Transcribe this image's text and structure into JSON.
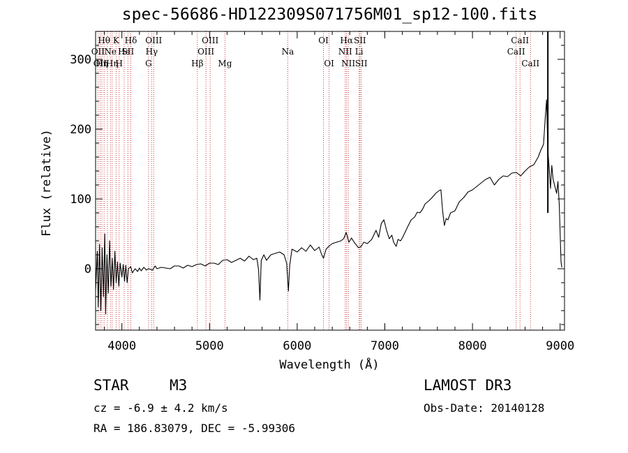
{
  "header": {
    "title": "spec-56686-HD122309S071756M01_sp12-100.fits"
  },
  "info": {
    "class_label": "STAR",
    "subclass_label": "M3",
    "survey": "LAMOST DR3",
    "cz": "cz = -6.9 ± 4.2 km/s",
    "obs_date": "Obs-Date: 20140128",
    "coords": "RA = 186.83079, DEC =  -5.99306"
  },
  "chart_data": {
    "type": "line",
    "title": "spec-56686-HD122309S071756M01_sp12-100.fits",
    "xlabel": "Wavelength (Å)",
    "ylabel": "Flux (relative)",
    "xlim": [
      3700,
      9050
    ],
    "ylim": [
      -88,
      340
    ],
    "xticks": [
      4000,
      5000,
      6000,
      7000,
      8000,
      9000
    ],
    "yticks": [
      0,
      100,
      200,
      300
    ],
    "line_color": "#000000",
    "marker_color": "#cc3333",
    "series": [
      {
        "name": "flux",
        "points": [
          [
            3700,
            -30
          ],
          [
            3720,
            25
          ],
          [
            3730,
            -55
          ],
          [
            3745,
            35
          ],
          [
            3760,
            -60
          ],
          [
            3775,
            30
          ],
          [
            3790,
            -40
          ],
          [
            3805,
            50
          ],
          [
            3815,
            -65
          ],
          [
            3830,
            20
          ],
          [
            3845,
            -35
          ],
          [
            3860,
            40
          ],
          [
            3875,
            -25
          ],
          [
            3890,
            15
          ],
          [
            3905,
            -30
          ],
          [
            3920,
            25
          ],
          [
            3935,
            -20
          ],
          [
            3950,
            10
          ],
          [
            3965,
            -25
          ],
          [
            3980,
            8
          ],
          [
            4000,
            -12
          ],
          [
            4015,
            6
          ],
          [
            4030,
            -18
          ],
          [
            4045,
            5
          ],
          [
            4060,
            -20
          ],
          [
            4075,
            0
          ],
          [
            4100,
            3
          ],
          [
            4120,
            -6
          ],
          [
            4150,
            0
          ],
          [
            4180,
            -4
          ],
          [
            4200,
            1
          ],
          [
            4220,
            -3
          ],
          [
            4250,
            2
          ],
          [
            4280,
            -2
          ],
          [
            4300,
            0
          ],
          [
            4330,
            -1
          ],
          [
            4350,
            -2
          ],
          [
            4380,
            4
          ],
          [
            4400,
            0
          ],
          [
            4450,
            2
          ],
          [
            4500,
            1
          ],
          [
            4550,
            0
          ],
          [
            4600,
            4
          ],
          [
            4650,
            4
          ],
          [
            4700,
            1
          ],
          [
            4750,
            5
          ],
          [
            4800,
            3
          ],
          [
            4850,
            6
          ],
          [
            4900,
            7
          ],
          [
            4950,
            4
          ],
          [
            5000,
            8
          ],
          [
            5050,
            8
          ],
          [
            5100,
            6
          ],
          [
            5150,
            12
          ],
          [
            5200,
            13
          ],
          [
            5250,
            9
          ],
          [
            5300,
            12
          ],
          [
            5350,
            15
          ],
          [
            5400,
            11
          ],
          [
            5450,
            18
          ],
          [
            5500,
            13
          ],
          [
            5540,
            15
          ],
          [
            5560,
            -2
          ],
          [
            5575,
            -45
          ],
          [
            5590,
            12
          ],
          [
            5620,
            20
          ],
          [
            5650,
            12
          ],
          [
            5700,
            20
          ],
          [
            5750,
            22
          ],
          [
            5800,
            24
          ],
          [
            5850,
            20
          ],
          [
            5880,
            8
          ],
          [
            5900,
            -32
          ],
          [
            5915,
            5
          ],
          [
            5940,
            28
          ],
          [
            6000,
            24
          ],
          [
            6050,
            30
          ],
          [
            6100,
            25
          ],
          [
            6150,
            34
          ],
          [
            6200,
            26
          ],
          [
            6250,
            31
          ],
          [
            6280,
            20
          ],
          [
            6300,
            15
          ],
          [
            6330,
            28
          ],
          [
            6360,
            32
          ],
          [
            6400,
            36
          ],
          [
            6450,
            38
          ],
          [
            6500,
            40
          ],
          [
            6530,
            43
          ],
          [
            6560,
            52
          ],
          [
            6590,
            38
          ],
          [
            6620,
            44
          ],
          [
            6650,
            38
          ],
          [
            6700,
            30
          ],
          [
            6730,
            32
          ],
          [
            6760,
            38
          ],
          [
            6800,
            36
          ],
          [
            6850,
            42
          ],
          [
            6900,
            55
          ],
          [
            6930,
            45
          ],
          [
            6960,
            65
          ],
          [
            6990,
            70
          ],
          [
            7020,
            55
          ],
          [
            7050,
            43
          ],
          [
            7080,
            48
          ],
          [
            7100,
            38
          ],
          [
            7130,
            32
          ],
          [
            7150,
            42
          ],
          [
            7180,
            40
          ],
          [
            7200,
            44
          ],
          [
            7230,
            52
          ],
          [
            7260,
            60
          ],
          [
            7300,
            70
          ],
          [
            7340,
            74
          ],
          [
            7370,
            81
          ],
          [
            7400,
            80
          ],
          [
            7430,
            85
          ],
          [
            7460,
            93
          ],
          [
            7500,
            97
          ],
          [
            7540,
            102
          ],
          [
            7580,
            108
          ],
          [
            7620,
            112
          ],
          [
            7640,
            113
          ],
          [
            7660,
            82
          ],
          [
            7680,
            62
          ],
          [
            7700,
            72
          ],
          [
            7720,
            70
          ],
          [
            7750,
            80
          ],
          [
            7800,
            83
          ],
          [
            7850,
            96
          ],
          [
            7900,
            102
          ],
          [
            7950,
            110
          ],
          [
            8000,
            113
          ],
          [
            8050,
            118
          ],
          [
            8100,
            123
          ],
          [
            8150,
            128
          ],
          [
            8200,
            131
          ],
          [
            8250,
            120
          ],
          [
            8300,
            128
          ],
          [
            8350,
            133
          ],
          [
            8400,
            132
          ],
          [
            8450,
            137
          ],
          [
            8500,
            138
          ],
          [
            8550,
            133
          ],
          [
            8600,
            140
          ],
          [
            8650,
            146
          ],
          [
            8700,
            149
          ],
          [
            8750,
            160
          ],
          [
            8780,
            170
          ],
          [
            8810,
            178
          ],
          [
            8830,
            216
          ],
          [
            8845,
            242
          ],
          [
            8860,
            170
          ],
          [
            8875,
            145
          ],
          [
            8890,
            115
          ],
          [
            8905,
            148
          ],
          [
            8920,
            128
          ],
          [
            8940,
            118
          ],
          [
            8960,
            108
          ],
          [
            8975,
            125
          ],
          [
            8990,
            92
          ],
          [
            9010,
            10
          ],
          [
            9020,
            2
          ]
        ]
      }
    ],
    "spike": {
      "x": 8860,
      "y_low": 80,
      "y_high": 340
    },
    "lines": [
      {
        "x": 3727,
        "label": "OII",
        "row": 2
      },
      {
        "x": 3751,
        "label": "OII",
        "row": 3
      },
      {
        "x": 3771,
        "label": "Hη",
        "row": 3
      },
      {
        "x": 3797,
        "label": "Hθ",
        "row": 1
      },
      {
        "x": 3835,
        "label": "",
        "row": 0
      },
      {
        "x": 3869,
        "label": "Ne",
        "row": 2
      },
      {
        "x": 3889,
        "label": "Hη",
        "row": 3
      },
      {
        "x": 3934,
        "label": "K",
        "row": 1
      },
      {
        "x": 3969,
        "label": "H",
        "row": 3
      },
      {
        "x": 4026,
        "label": "He",
        "row": 2
      },
      {
        "x": 4069,
        "label": "SII",
        "row": 2
      },
      {
        "x": 4102,
        "label": "Hδ",
        "row": 1
      },
      {
        "x": 4304,
        "label": "G",
        "row": 3
      },
      {
        "x": 4340,
        "label": "Hγ",
        "row": 2
      },
      {
        "x": 4363,
        "label": "OIII",
        "row": 1
      },
      {
        "x": 4861,
        "label": "Hβ",
        "row": 3
      },
      {
        "x": 4959,
        "label": "OIII",
        "row": 2
      },
      {
        "x": 5007,
        "label": "OIII",
        "row": 1
      },
      {
        "x": 5176,
        "label": "Mg",
        "row": 3
      },
      {
        "x": 5893,
        "label": "Na",
        "row": 2
      },
      {
        "x": 6300,
        "label": "OI",
        "row": 1
      },
      {
        "x": 6364,
        "label": "OI",
        "row": 3
      },
      {
        "x": 6548,
        "label": "NII",
        "row": 2
      },
      {
        "x": 6563,
        "label": "Hα",
        "row": 1
      },
      {
        "x": 6583,
        "label": "NII",
        "row": 3
      },
      {
        "x": 6707,
        "label": "Li",
        "row": 2
      },
      {
        "x": 6716,
        "label": "SII",
        "row": 1
      },
      {
        "x": 6731,
        "label": "SII",
        "row": 3
      },
      {
        "x": 8498,
        "label": "CaII",
        "row": 2
      },
      {
        "x": 8542,
        "label": "CaII",
        "row": 1
      },
      {
        "x": 8662,
        "label": "CaII",
        "row": 3
      }
    ]
  }
}
